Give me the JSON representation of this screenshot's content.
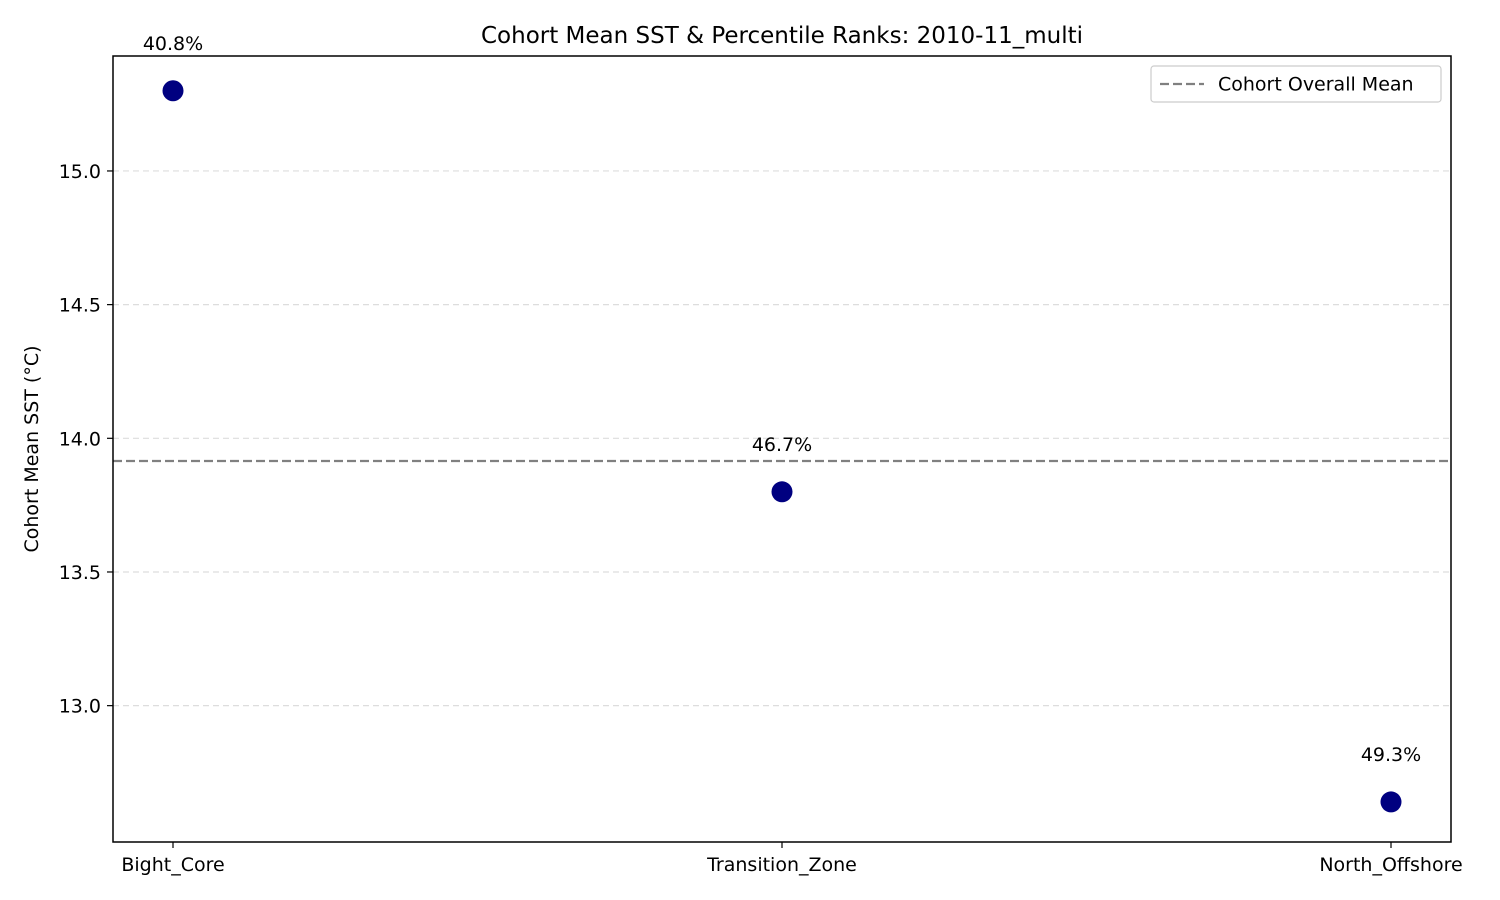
{
  "chart_data": {
    "type": "scatter",
    "title": "Cohort Mean SST & Percentile Ranks: 2010-11_multi",
    "xlabel": "",
    "ylabel": "Cohort Mean SST (°C)",
    "categories": [
      "Bight_Core",
      "Transition_Zone",
      "North_Offshore"
    ],
    "series": [
      {
        "values": [
          15.3,
          13.8,
          12.64
        ],
        "labels": [
          "40.8%",
          "46.7%",
          "49.3%"
        ]
      }
    ],
    "reference_line": {
      "name": "Cohort Overall Mean",
      "value": 13.915
    },
    "ylim": [
      12.49,
      15.43
    ],
    "yticks": [
      "13.0",
      "13.5",
      "14.0",
      "14.5",
      "15.0"
    ],
    "grid": "y-dashed",
    "legend_position": "top-right",
    "colors": {
      "point": "#000080",
      "reference_line": "#808080",
      "grid": "#dddddd"
    }
  }
}
